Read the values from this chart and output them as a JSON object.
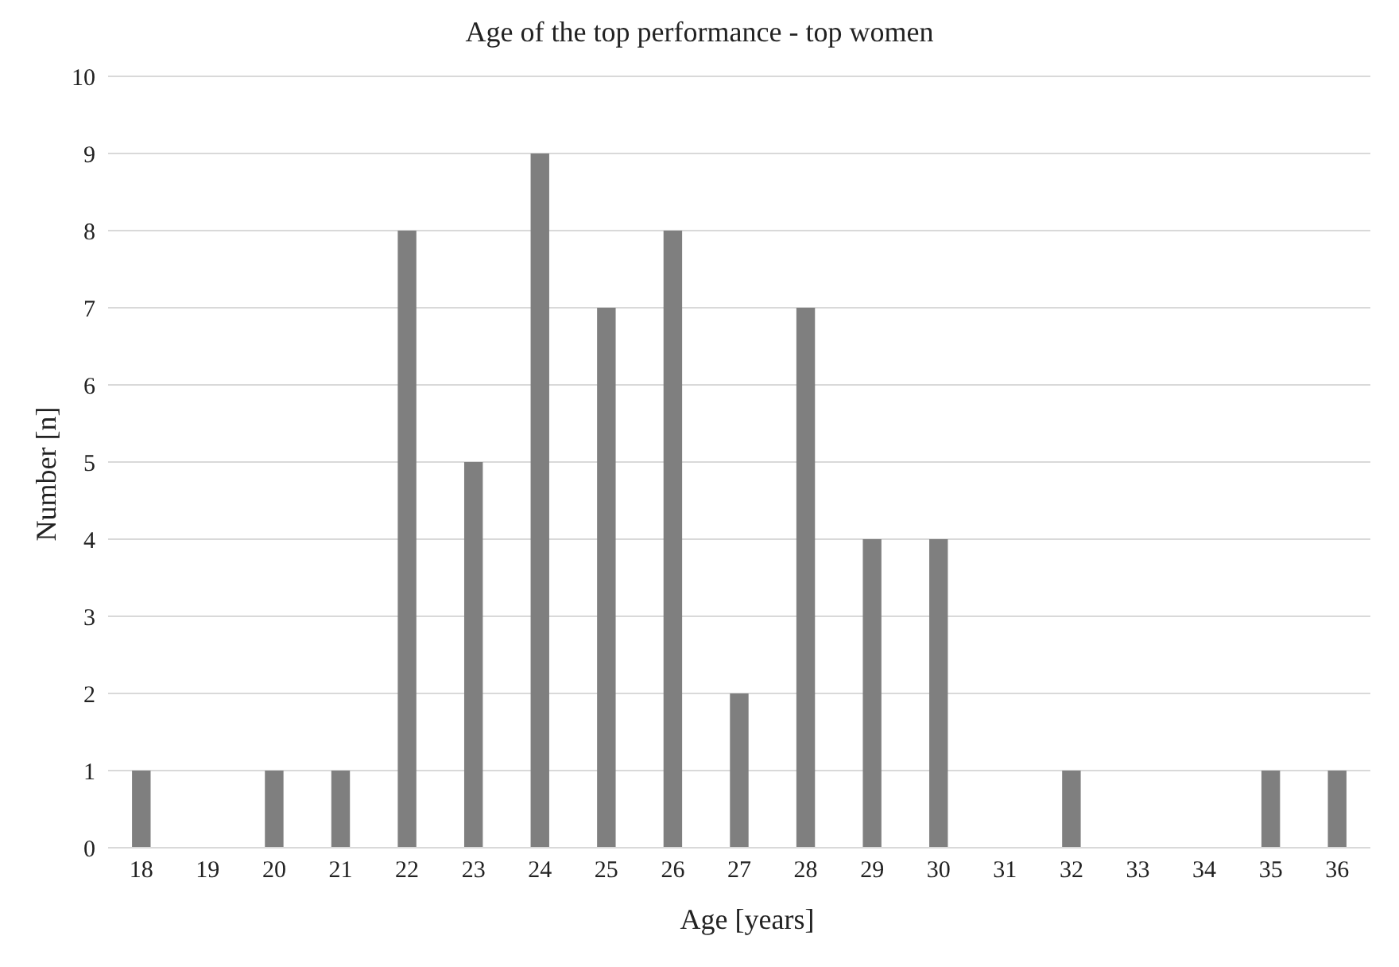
{
  "chart_data": {
    "type": "bar",
    "title": "Age of the top performance - top women",
    "xlabel": "Age [years]",
    "ylabel": "Number [n]",
    "categories": [
      "18",
      "19",
      "20",
      "21",
      "22",
      "23",
      "24",
      "25",
      "26",
      "27",
      "28",
      "29",
      "30",
      "31",
      "32",
      "33",
      "34",
      "35",
      "36"
    ],
    "values": [
      1,
      0,
      1,
      1,
      8,
      5,
      9,
      7,
      8,
      2,
      7,
      4,
      4,
      0,
      1,
      0,
      0,
      1,
      1
    ],
    "color": "#7f7f7f",
    "ylim": [
      0,
      10
    ],
    "yticks": [
      0,
      1,
      2,
      3,
      4,
      5,
      6,
      7,
      8,
      9,
      10
    ],
    "grid": "y"
  }
}
